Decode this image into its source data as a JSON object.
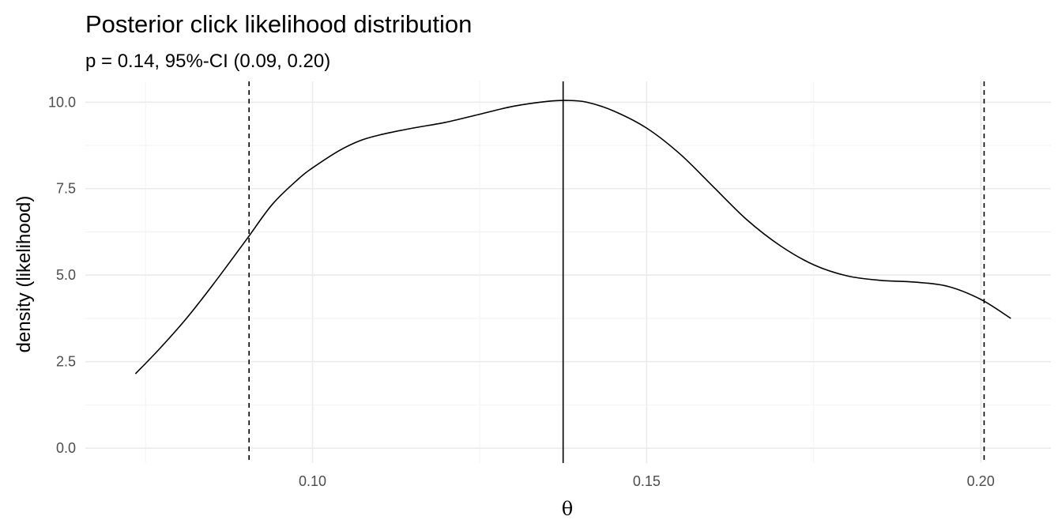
{
  "chart_data": {
    "type": "line",
    "title": "Posterior click likelihood distribution",
    "subtitle": "p = 0.14, 95%-CI (0.09, 0.20)",
    "xlabel": "θ",
    "ylabel": "density (likelihood)",
    "xlim": [
      0.066,
      0.2105
    ],
    "ylim": [
      -0.43,
      10.6
    ],
    "x_ticks": [
      0.1,
      0.15,
      0.2
    ],
    "x_tick_labels": [
      "0.10",
      "0.15",
      "0.20"
    ],
    "y_ticks": [
      0.0,
      2.5,
      5.0,
      7.5,
      10.0
    ],
    "y_tick_labels": [
      "0.0",
      "2.5",
      "5.0",
      "7.5",
      "10.0"
    ],
    "grid": true,
    "series": [
      {
        "x": [
          0.0735,
          0.077,
          0.081,
          0.085,
          0.09,
          0.094,
          0.098,
          0.1,
          0.104,
          0.107,
          0.11,
          0.115,
          0.12,
          0.125,
          0.13,
          0.135,
          0.138,
          0.141,
          0.145,
          0.15,
          0.155,
          0.16,
          0.165,
          0.17,
          0.175,
          0.18,
          0.185,
          0.19,
          0.195,
          0.2,
          0.2045
        ],
        "y": [
          2.15,
          2.85,
          3.72,
          4.7,
          6.0,
          7.05,
          7.8,
          8.1,
          8.6,
          8.88,
          9.05,
          9.25,
          9.42,
          9.65,
          9.88,
          10.02,
          10.05,
          10.0,
          9.75,
          9.25,
          8.5,
          7.55,
          6.6,
          5.85,
          5.3,
          4.98,
          4.85,
          4.8,
          4.68,
          4.3,
          3.75
        ]
      }
    ],
    "reference_lines": [
      {
        "x": 0.0905,
        "style": "dashed"
      },
      {
        "x": 0.1375,
        "style": "solid"
      },
      {
        "x": 0.2005,
        "style": "dashed"
      }
    ]
  }
}
